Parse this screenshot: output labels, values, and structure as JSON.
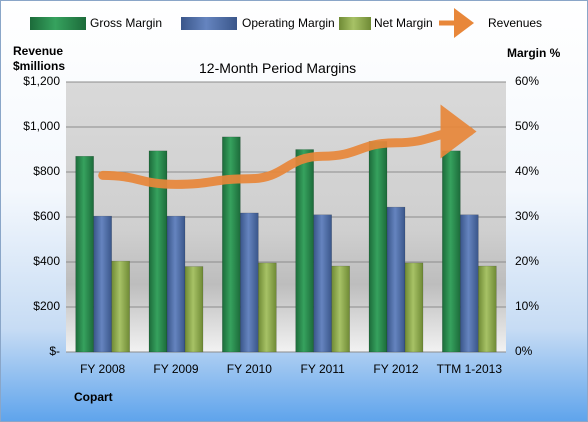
{
  "chart_data": {
    "type": "bar",
    "title": "12-Month Period Margins",
    "company": "Copart",
    "left_axis_title": [
      "Revenue",
      "$millions"
    ],
    "right_axis_title": "Margin %",
    "categories": [
      "FY 2008",
      "FY 2009",
      "FY 2010",
      "FY 2011",
      "FY 2012",
      "TTM 1-2013"
    ],
    "left_ticks": [
      "$-",
      "$200",
      "$400",
      "$600",
      "$800",
      "$1,000",
      "$1,200"
    ],
    "right_ticks": [
      "0%",
      "10%",
      "20%",
      "30%",
      "40%",
      "50%",
      "60%"
    ],
    "ylim_revenue": [
      0,
      1200
    ],
    "ylim_margin": [
      0,
      60
    ],
    "series": [
      {
        "name": "Gross Margin",
        "axis": "margin",
        "color": "#2a8a4e",
        "values": [
          43.5,
          44.7,
          47.8,
          45.0,
          46.8,
          44.7
        ]
      },
      {
        "name": "Operating Margin",
        "axis": "margin",
        "color": "#4f6ea8",
        "values": [
          30.2,
          30.2,
          30.9,
          30.5,
          32.2,
          30.5
        ]
      },
      {
        "name": "Net Margin",
        "axis": "margin",
        "color": "#8fac4e",
        "values": [
          20.2,
          19.0,
          19.8,
          19.1,
          19.8,
          19.1
        ]
      },
      {
        "name": "Revenues",
        "axis": "revenue",
        "type": "line",
        "color": "#e8873a",
        "values": [
          785,
          745,
          770,
          870,
          930,
          980
        ]
      }
    ],
    "grid": true,
    "legend": "top"
  }
}
